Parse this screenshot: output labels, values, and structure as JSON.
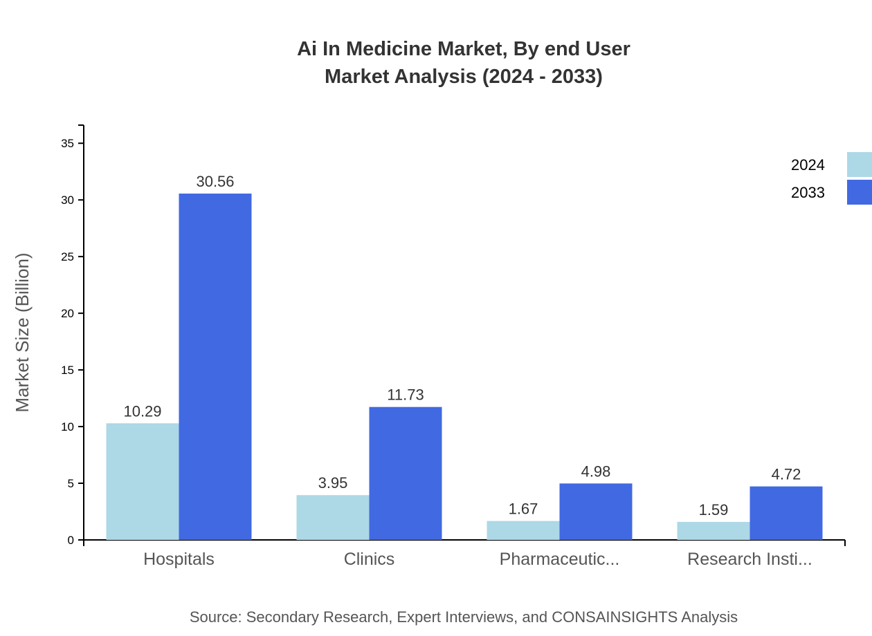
{
  "chart_data": {
    "type": "bar",
    "title": "Ai In Medicine Market, By end User",
    "subtitle": "Market Analysis (2024 - 2033)",
    "xlabel": "",
    "ylabel": "Market Size (Billion)",
    "ylim": [
      0,
      36.6
    ],
    "yticks": [
      0,
      5,
      10,
      15,
      20,
      25,
      30,
      35
    ],
    "categories": [
      "Hospitals",
      "Clinics",
      "Pharmaceutic...",
      "Research Insti..."
    ],
    "series": [
      {
        "name": "2024",
        "color": "#ADD8E6",
        "values": [
          10.29,
          3.95,
          1.67,
          1.59
        ]
      },
      {
        "name": "2033",
        "color": "#4169E1",
        "values": [
          30.56,
          11.73,
          4.98,
          4.72
        ]
      }
    ],
    "grid": false,
    "legend": "top-right",
    "source": "Source: Secondary Research, Expert Interviews, and CONSAINSIGHTS Analysis"
  }
}
